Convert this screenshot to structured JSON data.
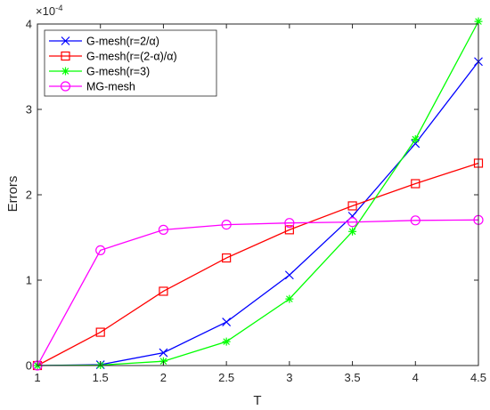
{
  "chart_data": {
    "type": "line",
    "xlabel": "T",
    "ylabel": "Errors",
    "y_exponent_label": "×10",
    "y_exponent_power": "-4",
    "y_scale": 0.0001,
    "xlim": [
      1,
      4.5
    ],
    "ylim": [
      0,
      4.0
    ],
    "x_ticks": [
      1,
      1.5,
      2,
      2.5,
      3,
      3.5,
      4,
      4.5
    ],
    "x_tick_labels": [
      "1",
      "1.5",
      "2",
      "2.5",
      "3",
      "3.5",
      "4",
      "4.5"
    ],
    "y_ticks": [
      0,
      1,
      2,
      3,
      4
    ],
    "y_tick_labels": [
      "0",
      "1",
      "2",
      "3",
      "4"
    ],
    "grid": false,
    "legend_position": "top-left",
    "x": [
      1,
      1.5,
      2,
      2.5,
      3,
      3.5,
      4,
      4.5
    ],
    "series": [
      {
        "name": "G-mesh(r=2/α)",
        "color": "#0000ff",
        "marker": "x",
        "values": [
          0,
          0.01,
          0.15,
          0.51,
          1.06,
          1.75,
          2.6,
          3.56
        ]
      },
      {
        "name": "G-mesh(r=(2-α)/α)",
        "color": "#ff0000",
        "marker": "square",
        "values": [
          0,
          0.39,
          0.87,
          1.26,
          1.59,
          1.87,
          2.13,
          2.37
        ]
      },
      {
        "name": "G-mesh(r=3)",
        "color": "#00ff00",
        "marker": "asterisk",
        "values": [
          0,
          0.005,
          0.05,
          0.28,
          0.78,
          1.57,
          2.65,
          4.03
        ]
      },
      {
        "name": "MG-mesh",
        "color": "#ff00ff",
        "marker": "circle",
        "values": [
          0,
          1.35,
          1.59,
          1.65,
          1.67,
          1.68,
          1.7,
          1.705
        ]
      }
    ]
  }
}
